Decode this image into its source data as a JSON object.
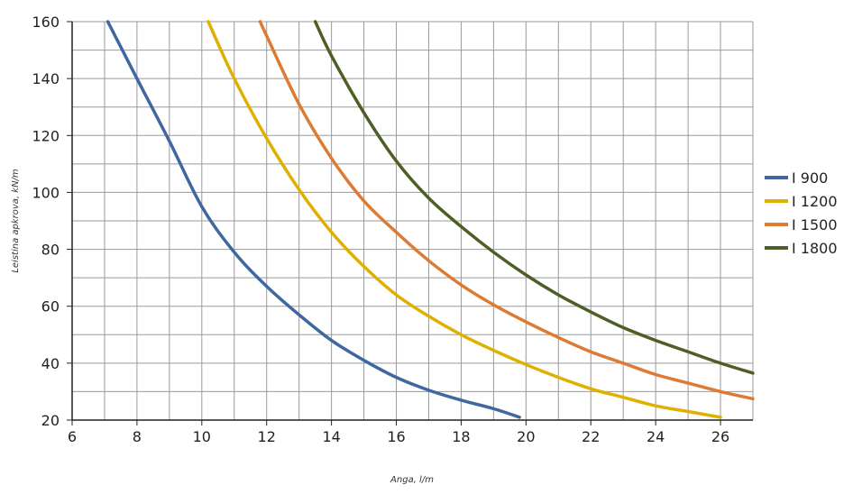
{
  "chart_data": {
    "type": "line",
    "xlabel": "Anga, l/m",
    "ylabel": "Leistina apkrova, kN/m",
    "xlim": [
      6,
      27
    ],
    "ylim": [
      20,
      160
    ],
    "x_ticks": [
      "6",
      "8",
      "10",
      "12",
      "14",
      "16",
      "18",
      "20",
      "22",
      "24",
      "26"
    ],
    "y_ticks": [
      "20",
      "40",
      "60",
      "80",
      "100",
      "120",
      "140",
      "160"
    ],
    "grid": true,
    "legend_position": "right",
    "series": [
      {
        "name": "I 900",
        "color": "#3f67a0",
        "x": [
          7.1,
          8,
          9,
          10,
          11,
          12,
          13,
          14,
          15,
          16,
          17,
          18,
          19,
          19.8
        ],
        "y": [
          160,
          140,
          118,
          95,
          79,
          67,
          57,
          48,
          41,
          35,
          30.5,
          27,
          24,
          21
        ]
      },
      {
        "name": "I 1200",
        "color": "#e0b000",
        "x": [
          10.2,
          11,
          12,
          13,
          14,
          15,
          16,
          17,
          18,
          19,
          20,
          21,
          22,
          23,
          24,
          25,
          26
        ],
        "y": [
          160,
          140,
          119,
          101,
          86,
          74,
          64,
          56.5,
          50,
          44.5,
          39.5,
          35,
          31,
          28,
          25,
          23,
          21
        ]
      },
      {
        "name": "I 1500",
        "color": "#dd7a33",
        "x": [
          11.8,
          12,
          13,
          14,
          15,
          16,
          17,
          18,
          19,
          20,
          21,
          22,
          23,
          24,
          25,
          26,
          27
        ],
        "y": [
          160,
          155,
          131,
          112,
          97,
          86,
          76,
          67.5,
          60.5,
          54.5,
          49,
          44,
          40,
          36,
          33,
          30,
          27.5
        ]
      },
      {
        "name": "I 1800",
        "color": "#4e5f25",
        "x": [
          13.5,
          14,
          15,
          16,
          17,
          18,
          19,
          20,
          21,
          22,
          23,
          24,
          25,
          26,
          27
        ],
        "y": [
          160,
          148,
          128,
          111,
          98,
          88,
          79,
          71,
          64,
          58,
          52.5,
          48,
          44,
          40,
          36.5
        ]
      }
    ]
  }
}
